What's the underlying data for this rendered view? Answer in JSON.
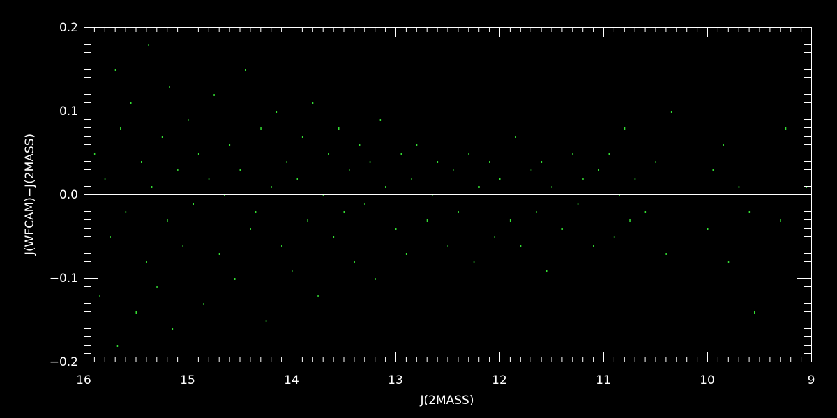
{
  "chart_data": {
    "type": "scatter",
    "title": "",
    "xlabel": "J(2MASS)",
    "ylabel": "J(WFCAM)−J(2MASS)",
    "xlim": [
      16,
      9
    ],
    "ylim": [
      -0.2,
      0.2
    ],
    "x_ticks": [
      "16",
      "15",
      "14",
      "13",
      "12",
      "11",
      "10",
      "9"
    ],
    "y_ticks": [
      "−0.2",
      "−0.1",
      "0.0",
      "0.1",
      "0.2"
    ],
    "grid": false,
    "reference_line": {
      "y": 0.0,
      "color": "#ffffff"
    },
    "point_color": "#33dd33",
    "axis_color": "#ffffff",
    "background": "#000000",
    "points": [
      [
        15.9,
        0.05
      ],
      [
        15.85,
        -0.12
      ],
      [
        15.8,
        0.02
      ],
      [
        15.75,
        -0.05
      ],
      [
        15.7,
        0.15
      ],
      [
        15.68,
        -0.18
      ],
      [
        15.65,
        0.08
      ],
      [
        15.6,
        -0.02
      ],
      [
        15.55,
        0.11
      ],
      [
        15.5,
        -0.14
      ],
      [
        15.45,
        0.04
      ],
      [
        15.4,
        -0.08
      ],
      [
        15.38,
        0.18
      ],
      [
        15.35,
        0.01
      ],
      [
        15.3,
        -0.11
      ],
      [
        15.25,
        0.07
      ],
      [
        15.2,
        -0.03
      ],
      [
        15.18,
        0.13
      ],
      [
        15.15,
        -0.16
      ],
      [
        15.1,
        0.03
      ],
      [
        15.05,
        -0.06
      ],
      [
        15.0,
        0.09
      ],
      [
        14.95,
        -0.01
      ],
      [
        14.9,
        0.05
      ],
      [
        14.85,
        -0.13
      ],
      [
        14.8,
        0.02
      ],
      [
        14.75,
        0.12
      ],
      [
        14.7,
        -0.07
      ],
      [
        14.65,
        0.0
      ],
      [
        14.6,
        0.06
      ],
      [
        14.55,
        -0.1
      ],
      [
        14.5,
        0.03
      ],
      [
        14.45,
        0.15
      ],
      [
        14.4,
        -0.04
      ],
      [
        14.35,
        -0.02
      ],
      [
        14.3,
        0.08
      ],
      [
        14.25,
        -0.15
      ],
      [
        14.2,
        0.01
      ],
      [
        14.15,
        0.1
      ],
      [
        14.1,
        -0.06
      ],
      [
        14.05,
        0.04
      ],
      [
        14.0,
        -0.09
      ],
      [
        13.95,
        0.02
      ],
      [
        13.9,
        0.07
      ],
      [
        13.85,
        -0.03
      ],
      [
        13.8,
        0.11
      ],
      [
        13.75,
        -0.12
      ],
      [
        13.7,
        0.0
      ],
      [
        13.65,
        0.05
      ],
      [
        13.6,
        -0.05
      ],
      [
        13.55,
        0.08
      ],
      [
        13.5,
        -0.02
      ],
      [
        13.45,
        0.03
      ],
      [
        13.4,
        -0.08
      ],
      [
        13.35,
        0.06
      ],
      [
        13.3,
        -0.01
      ],
      [
        13.25,
        0.04
      ],
      [
        13.2,
        -0.1
      ],
      [
        13.15,
        0.09
      ],
      [
        13.1,
        0.01
      ],
      [
        13.0,
        -0.04
      ],
      [
        12.95,
        0.05
      ],
      [
        12.9,
        -0.07
      ],
      [
        12.85,
        0.02
      ],
      [
        12.8,
        0.06
      ],
      [
        12.7,
        -0.03
      ],
      [
        12.65,
        0.0
      ],
      [
        12.6,
        0.04
      ],
      [
        12.5,
        -0.06
      ],
      [
        12.45,
        0.03
      ],
      [
        12.4,
        -0.02
      ],
      [
        12.3,
        0.05
      ],
      [
        12.25,
        -0.08
      ],
      [
        12.2,
        0.01
      ],
      [
        12.1,
        0.04
      ],
      [
        12.05,
        -0.05
      ],
      [
        12.0,
        0.02
      ],
      [
        11.9,
        -0.03
      ],
      [
        11.85,
        0.07
      ],
      [
        11.8,
        -0.06
      ],
      [
        11.7,
        0.03
      ],
      [
        11.65,
        -0.02
      ],
      [
        11.6,
        0.04
      ],
      [
        11.55,
        -0.09
      ],
      [
        11.5,
        0.01
      ],
      [
        11.4,
        -0.04
      ],
      [
        11.3,
        0.05
      ],
      [
        11.25,
        -0.01
      ],
      [
        11.2,
        0.02
      ],
      [
        11.1,
        -0.06
      ],
      [
        11.05,
        0.03
      ],
      [
        10.95,
        0.05
      ],
      [
        10.9,
        -0.05
      ],
      [
        10.85,
        0.0
      ],
      [
        10.8,
        0.08
      ],
      [
        10.75,
        -0.03
      ],
      [
        10.7,
        0.02
      ],
      [
        10.6,
        -0.02
      ],
      [
        10.5,
        0.04
      ],
      [
        10.4,
        -0.07
      ],
      [
        10.35,
        0.1
      ],
      [
        10.0,
        -0.04
      ],
      [
        9.95,
        0.03
      ],
      [
        9.85,
        0.06
      ],
      [
        9.8,
        -0.08
      ],
      [
        9.7,
        0.01
      ],
      [
        9.6,
        -0.02
      ],
      [
        9.55,
        -0.14
      ],
      [
        9.3,
        -0.03
      ],
      [
        9.25,
        0.08
      ],
      [
        9.05,
        0.01
      ]
    ]
  }
}
